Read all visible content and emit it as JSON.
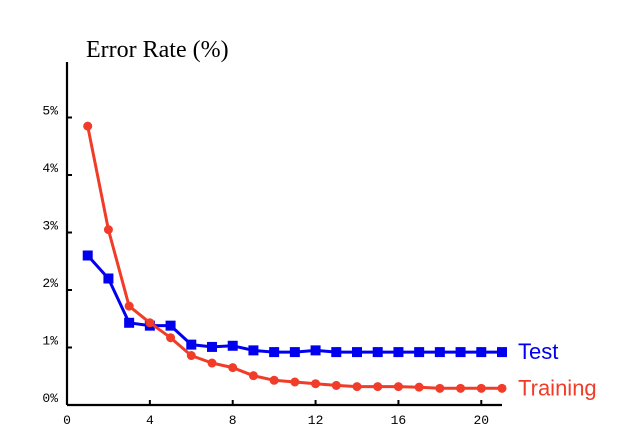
{
  "chart_data": {
    "type": "line",
    "title": "Error Rate (%)",
    "xlabel": "",
    "ylabel": "",
    "xlim": [
      0,
      21
    ],
    "ylim": [
      0,
      5.9
    ],
    "x_ticks": [
      0,
      4,
      8,
      12,
      16,
      20
    ],
    "x_tick_labels": [
      "0",
      "4",
      "8",
      "12",
      "16",
      "20"
    ],
    "y_ticks": [
      0,
      1,
      2,
      3,
      4,
      5
    ],
    "y_tick_labels": [
      "0%",
      "1%",
      "2%",
      "3%",
      "4%",
      "5%"
    ],
    "grid": false,
    "legend": "right, inline at line ends",
    "series": [
      {
        "name": "Test",
        "color": "#0000ee",
        "marker": "square",
        "x": [
          1,
          2,
          3,
          4,
          5,
          6,
          7,
          8,
          9,
          10,
          11,
          12,
          13,
          14,
          15,
          16,
          17,
          18,
          19,
          20,
          21
        ],
        "y": [
          2.6,
          2.2,
          1.43,
          1.38,
          1.38,
          1.05,
          1.01,
          1.03,
          0.95,
          0.92,
          0.92,
          0.95,
          0.92,
          0.92,
          0.92,
          0.92,
          0.92,
          0.92,
          0.92,
          0.92,
          0.92
        ]
      },
      {
        "name": "Training",
        "color": "#f03c28",
        "marker": "circle",
        "x": [
          1,
          2,
          3,
          4,
          5,
          6,
          7,
          8,
          9,
          10,
          11,
          12,
          13,
          14,
          15,
          16,
          17,
          18,
          19,
          20,
          21
        ],
        "y": [
          4.85,
          3.05,
          1.72,
          1.43,
          1.17,
          0.86,
          0.73,
          0.65,
          0.51,
          0.43,
          0.4,
          0.37,
          0.34,
          0.32,
          0.32,
          0.32,
          0.31,
          0.29,
          0.29,
          0.29,
          0.29
        ]
      }
    ]
  }
}
